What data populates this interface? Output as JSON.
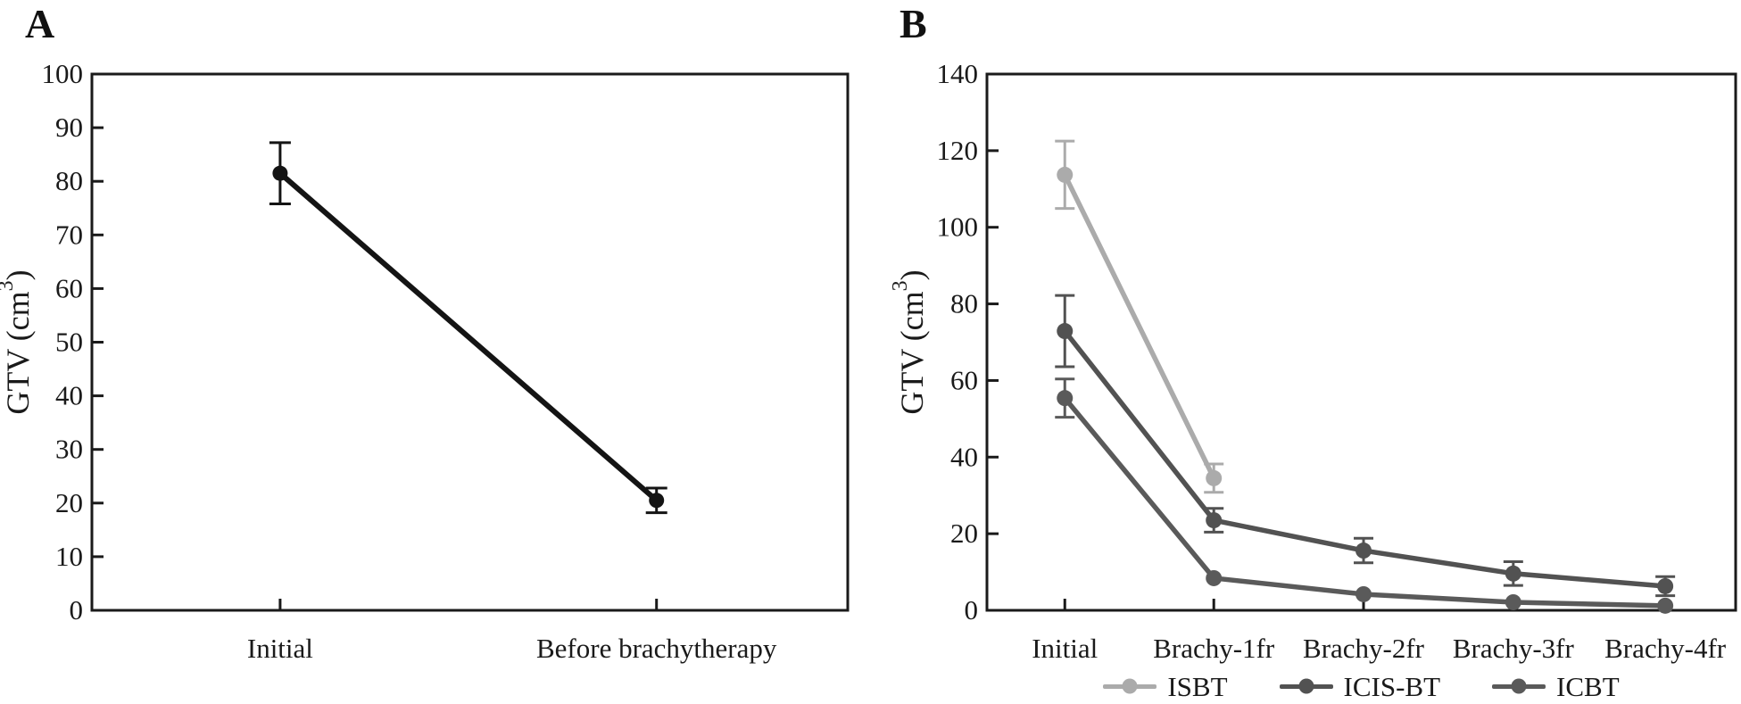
{
  "figure": {
    "background": "#ffffff",
    "ink_color": "#1a1a1a",
    "panel_a_label": "A",
    "panel_b_label": "B"
  },
  "chart_data": [
    {
      "type": "line",
      "panel_label": "A",
      "title": "",
      "xlabel": "",
      "ylabel": "GTV (cm³)",
      "categories": [
        "Initial",
        "Before brachytherapy"
      ],
      "ylim": [
        0,
        100
      ],
      "ytick_step": 10,
      "grid": false,
      "legend_position": "none",
      "series": [
        {
          "name": "GTV",
          "color": "#141414",
          "values": [
            81.5,
            20.5
          ],
          "errors": [
            5.7,
            2.3
          ]
        }
      ]
    },
    {
      "type": "line",
      "panel_label": "B",
      "title": "",
      "xlabel": "",
      "ylabel": "GTV (cm³)",
      "categories": [
        "Initial",
        "Brachy-1fr",
        "Brachy-2fr",
        "Brachy-3fr",
        "Brachy-4fr"
      ],
      "ylim": [
        0,
        140
      ],
      "ytick_step": 20,
      "grid": false,
      "legend_position": "bottom",
      "series": [
        {
          "name": "ISBT",
          "color": "#ababab",
          "values": [
            113.7,
            34.5,
            null,
            null,
            null
          ],
          "errors": [
            8.8,
            3.7,
            0,
            0,
            0
          ]
        },
        {
          "name": "ICIS-BT",
          "color": "#525252",
          "values": [
            72.9,
            23.5,
            15.6,
            9.6,
            6.3
          ],
          "errors": [
            9.3,
            3.1,
            3.2,
            3.1,
            2.5
          ]
        },
        {
          "name": "ICBT",
          "color": "#5a5a5a",
          "values": [
            55.4,
            8.4,
            4.2,
            2.1,
            1.2
          ],
          "errors": [
            5.0,
            0,
            0,
            0,
            0
          ]
        }
      ]
    }
  ]
}
